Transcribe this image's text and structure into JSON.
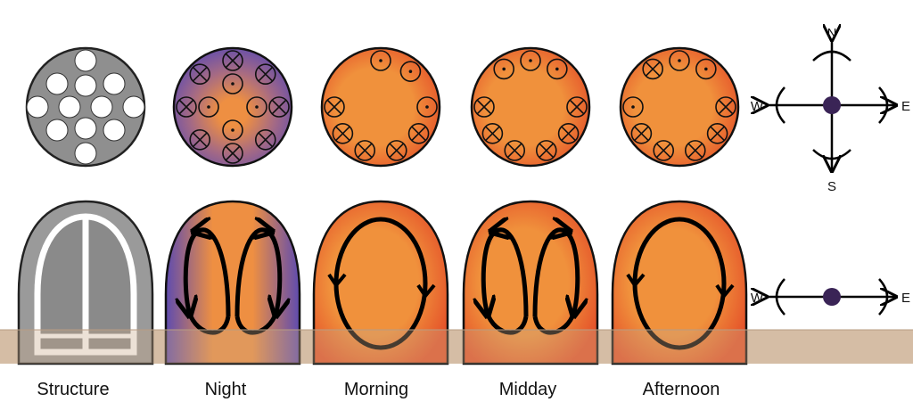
{
  "panels": [
    {
      "label": "Structure"
    },
    {
      "label": "Night"
    },
    {
      "label": "Morning"
    },
    {
      "label": "Midday"
    },
    {
      "label": "Afternoon"
    }
  ],
  "compass_top": {
    "n": "N",
    "s": "S",
    "w": "W",
    "e": "E"
  },
  "compass_bottom": {
    "w": "W",
    "e": "E"
  }
}
